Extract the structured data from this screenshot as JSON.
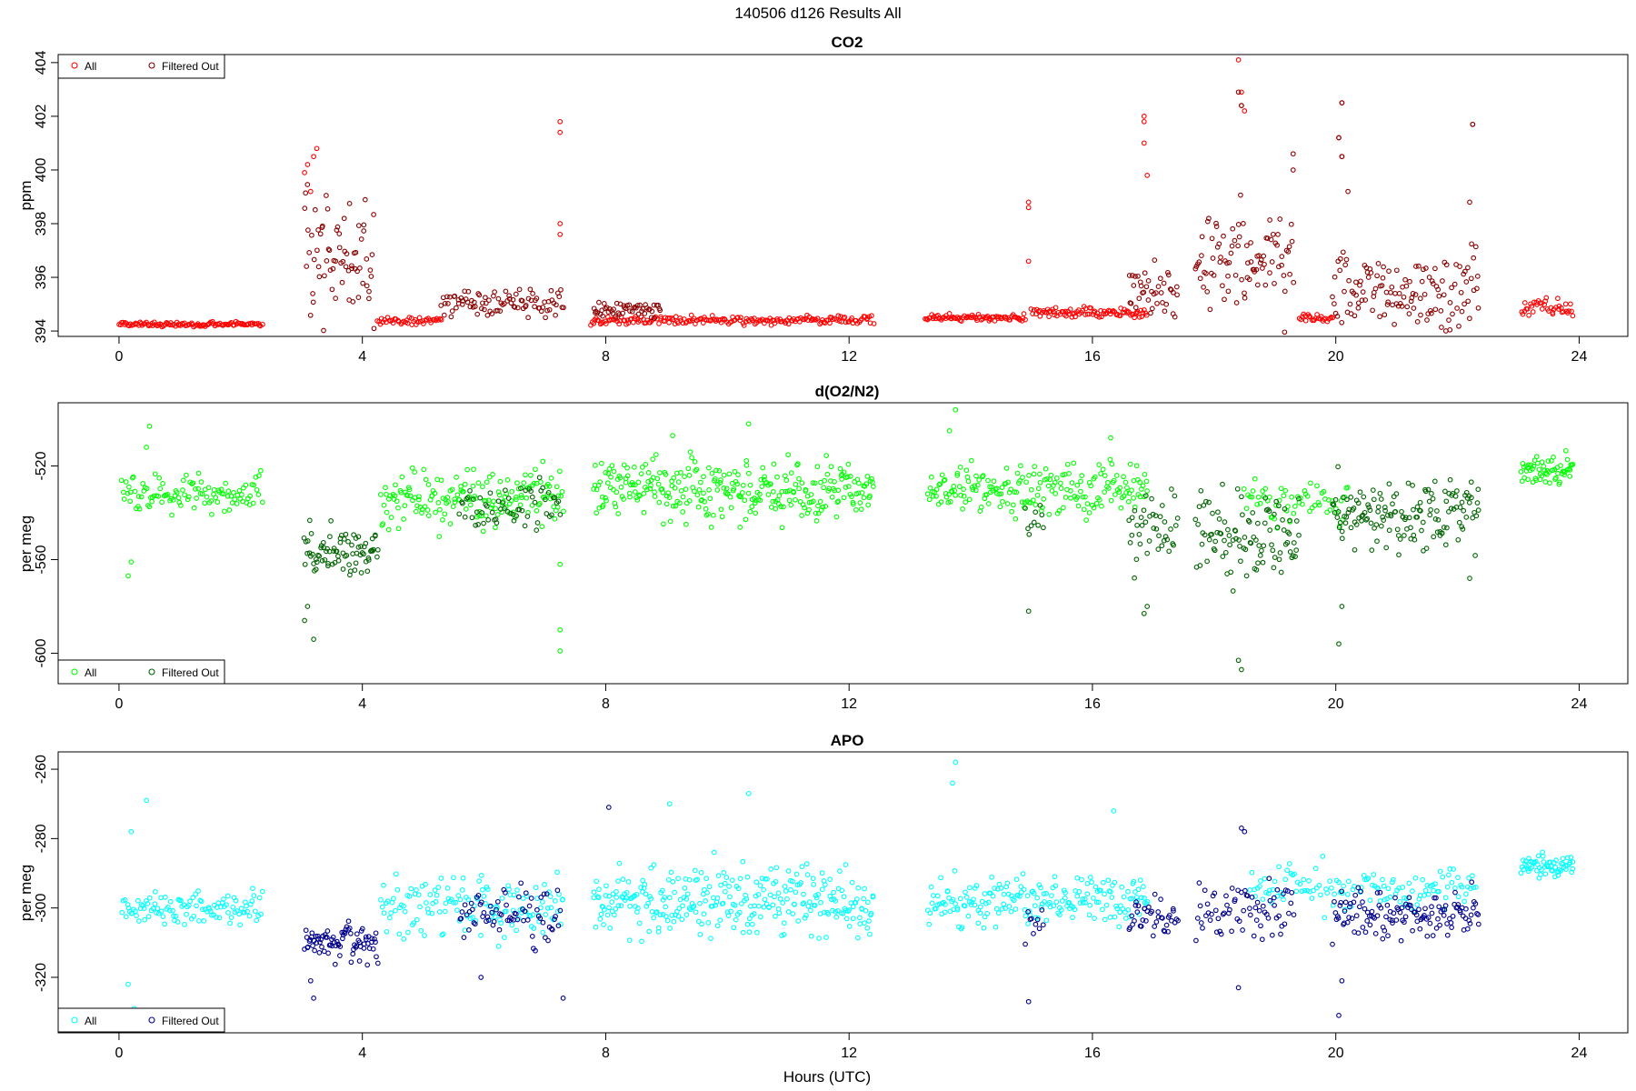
{
  "page_title": "140506   d126   Results All",
  "x_axis_label": "Hours (UTC)",
  "chart_data": [
    {
      "type": "scatter",
      "title": "CO2",
      "ylabel": "ppm",
      "xlabel": "",
      "xlim": [
        -1,
        24.8
      ],
      "ylim": [
        393.8,
        404.3
      ],
      "x_ticks": [
        0,
        4,
        8,
        12,
        16,
        20,
        24
      ],
      "y_ticks": [
        394,
        396,
        398,
        400,
        402,
        404
      ],
      "legend": {
        "position": "top-left",
        "entries": [
          "All",
          "Filtered Out"
        ]
      },
      "colors": {
        "all": "#ff0000",
        "filtered": "#8b0000"
      },
      "series": [
        {
          "name": "All",
          "role": "all",
          "segments": [
            {
              "x0": 0.0,
              "x1": 2.35,
              "n": 110,
              "base": 394.25,
              "spread": 0.08
            },
            {
              "x0": 4.25,
              "x1": 5.3,
              "n": 45,
              "base": 394.4,
              "spread": 0.15
            },
            {
              "x0": 7.75,
              "x1": 12.4,
              "n": 200,
              "base": 394.4,
              "spread": 0.15
            },
            {
              "x0": 13.25,
              "x1": 14.9,
              "n": 80,
              "base": 394.5,
              "spread": 0.12
            },
            {
              "x0": 15.0,
              "x1": 16.9,
              "n": 90,
              "base": 394.7,
              "spread": 0.2
            },
            {
              "x0": 19.4,
              "x1": 19.95,
              "n": 25,
              "base": 394.5,
              "spread": 0.15
            },
            {
              "x0": 23.05,
              "x1": 23.9,
              "n": 40,
              "base": 394.9,
              "spread": 0.3
            }
          ],
          "points": [
            [
              3.05,
              399.9
            ],
            [
              3.1,
              400.2
            ],
            [
              3.2,
              400.5
            ],
            [
              3.25,
              400.8
            ],
            [
              3.15,
              399.2
            ],
            [
              7.25,
              401.8
            ],
            [
              7.25,
              401.4
            ],
            [
              7.25,
              398.0
            ],
            [
              7.25,
              397.6
            ],
            [
              14.95,
              398.8
            ],
            [
              14.95,
              398.6
            ],
            [
              14.95,
              396.6
            ],
            [
              16.85,
              402.0
            ],
            [
              16.85,
              401.8
            ],
            [
              16.85,
              401.0
            ],
            [
              16.9,
              399.8
            ],
            [
              18.4,
              404.1
            ],
            [
              18.45,
              402.9
            ],
            [
              18.45,
              402.4
            ],
            [
              18.5,
              402.2
            ],
            [
              20.1,
              402.5
            ],
            [
              20.05,
              401.2
            ],
            [
              20.1,
              400.5
            ],
            [
              22.25,
              401.7
            ]
          ]
        },
        {
          "name": "Filtered Out",
          "role": "filtered",
          "segments": [
            {
              "x0": 3.05,
              "x1": 4.2,
              "n": 70,
              "base": 397.0,
              "spread": 2.2
            },
            {
              "x0": 5.3,
              "x1": 7.3,
              "n": 90,
              "base": 395.0,
              "spread": 0.55
            },
            {
              "x0": 7.8,
              "x1": 8.9,
              "n": 50,
              "base": 394.8,
              "spread": 0.3
            },
            {
              "x0": 16.6,
              "x1": 17.4,
              "n": 40,
              "base": 395.5,
              "spread": 1.0
            },
            {
              "x0": 17.7,
              "x1": 19.3,
              "n": 90,
              "base": 396.6,
              "spread": 1.7
            },
            {
              "x0": 19.95,
              "x1": 22.35,
              "n": 130,
              "base": 395.6,
              "spread": 1.4
            }
          ],
          "points": [
            [
              18.4,
              402.9
            ],
            [
              18.45,
              402.4
            ],
            [
              19.3,
              400.6
            ],
            [
              19.3,
              400.0
            ],
            [
              20.1,
              402.5
            ],
            [
              20.05,
              401.2
            ],
            [
              20.1,
              400.5
            ],
            [
              22.25,
              401.7
            ],
            [
              20.2,
              399.2
            ],
            [
              22.2,
              398.8
            ]
          ]
        }
      ]
    },
    {
      "type": "scatter",
      "title": "d(O2/N2)",
      "ylabel": "per meg",
      "xlabel": "",
      "xlim": [
        -1,
        24.8
      ],
      "ylim": [
        -613,
        -493
      ],
      "x_ticks": [
        0,
        4,
        8,
        12,
        16,
        20,
        24
      ],
      "y_ticks": [
        -600,
        -560,
        -520
      ],
      "legend": {
        "position": "bottom-left",
        "entries": [
          "All",
          "Filtered Out"
        ]
      },
      "colors": {
        "all": "#00ff00",
        "filtered": "#006400"
      },
      "series": [
        {
          "name": "All",
          "role": "all",
          "segments": [
            {
              "x0": 0.05,
              "x1": 2.35,
              "n": 110,
              "base": -532,
              "spread": 8
            },
            {
              "x0": 4.3,
              "x1": 7.3,
              "n": 170,
              "base": -533,
              "spread": 12
            },
            {
              "x0": 7.8,
              "x1": 12.4,
              "n": 300,
              "base": -530,
              "spread": 13
            },
            {
              "x0": 13.3,
              "x1": 16.9,
              "n": 200,
              "base": -530,
              "spread": 10
            },
            {
              "x0": 18.5,
              "x1": 20.2,
              "n": 60,
              "base": -535,
              "spread": 10
            },
            {
              "x0": 23.05,
              "x1": 23.9,
              "n": 60,
              "base": -522,
              "spread": 6
            }
          ],
          "points": [
            [
              0.45,
              -512
            ],
            [
              0.5,
              -503
            ],
            [
              0.2,
              -561
            ],
            [
              0.15,
              -567
            ],
            [
              13.75,
              -496
            ],
            [
              13.65,
              -505
            ],
            [
              10.35,
              -502
            ],
            [
              9.1,
              -507
            ],
            [
              16.3,
              -508
            ],
            [
              7.25,
              -590
            ],
            [
              7.25,
              -599
            ],
            [
              7.25,
              -562
            ]
          ]
        },
        {
          "name": "Filtered Out",
          "role": "filtered",
          "segments": [
            {
              "x0": 3.05,
              "x1": 4.25,
              "n": 80,
              "base": -557,
              "spread": 10
            },
            {
              "x0": 5.6,
              "x1": 7.25,
              "n": 60,
              "base": -538,
              "spread": 10
            },
            {
              "x0": 14.9,
              "x1": 15.2,
              "n": 10,
              "base": -545,
              "spread": 12
            },
            {
              "x0": 16.6,
              "x1": 17.4,
              "n": 40,
              "base": -545,
              "spread": 15
            },
            {
              "x0": 17.7,
              "x1": 19.4,
              "n": 100,
              "base": -550,
              "spread": 18
            },
            {
              "x0": 19.95,
              "x1": 22.35,
              "n": 150,
              "base": -540,
              "spread": 13
            }
          ],
          "points": [
            [
              3.2,
              -594
            ],
            [
              3.1,
              -580
            ],
            [
              3.05,
              -586
            ],
            [
              14.95,
              -582
            ],
            [
              16.9,
              -580
            ],
            [
              16.85,
              -583
            ],
            [
              18.4,
              -603
            ],
            [
              18.45,
              -607
            ],
            [
              20.05,
              -596
            ],
            [
              20.1,
              -580
            ],
            [
              22.2,
              -568
            ]
          ]
        }
      ]
    },
    {
      "type": "scatter",
      "title": "APO",
      "ylabel": "per meg",
      "xlabel": "Hours (UTC)",
      "xlim": [
        -1,
        24.8
      ],
      "ylim": [
        -336,
        -255
      ],
      "x_ticks": [
        0,
        4,
        8,
        12,
        16,
        20,
        24
      ],
      "y_ticks": [
        -320,
        -300,
        -280,
        -260
      ],
      "legend": {
        "position": "bottom-left",
        "entries": [
          "All",
          "Filtered Out"
        ]
      },
      "colors": {
        "all": "#00ffff",
        "filtered": "#00008b"
      },
      "series": [
        {
          "name": "All",
          "role": "all",
          "segments": [
            {
              "x0": 0.05,
              "x1": 2.35,
              "n": 110,
              "base": -300,
              "spread": 5
            },
            {
              "x0": 4.3,
              "x1": 7.3,
              "n": 140,
              "base": -300,
              "spread": 8
            },
            {
              "x0": 7.8,
              "x1": 12.4,
              "n": 300,
              "base": -298,
              "spread": 9
            },
            {
              "x0": 13.3,
              "x1": 16.9,
              "n": 200,
              "base": -298,
              "spread": 7
            },
            {
              "x0": 18.6,
              "x1": 20.3,
              "n": 60,
              "base": -294,
              "spread": 6
            },
            {
              "x0": 20.4,
              "x1": 22.3,
              "n": 70,
              "base": -294,
              "spread": 5
            },
            {
              "x0": 23.05,
              "x1": 23.9,
              "n": 60,
              "base": -288,
              "spread": 3
            }
          ],
          "points": [
            [
              0.45,
              -269
            ],
            [
              0.2,
              -278
            ],
            [
              0.25,
              -329
            ],
            [
              0.15,
              -322
            ],
            [
              13.75,
              -258
            ],
            [
              13.7,
              -264
            ],
            [
              9.05,
              -270
            ],
            [
              10.35,
              -267
            ],
            [
              16.35,
              -272
            ]
          ]
        },
        {
          "name": "Filtered Out",
          "role": "filtered",
          "segments": [
            {
              "x0": 3.05,
              "x1": 4.25,
              "n": 80,
              "base": -310,
              "spread": 5
            },
            {
              "x0": 5.6,
              "x1": 7.25,
              "n": 70,
              "base": -302,
              "spread": 8
            },
            {
              "x0": 14.9,
              "x1": 15.2,
              "n": 10,
              "base": -305,
              "spread": 8
            },
            {
              "x0": 16.6,
              "x1": 17.4,
              "n": 40,
              "base": -303,
              "spread": 5
            },
            {
              "x0": 17.7,
              "x1": 19.3,
              "n": 70,
              "base": -300,
              "spread": 9
            },
            {
              "x0": 19.95,
              "x1": 22.35,
              "n": 130,
              "base": -302,
              "spread": 6
            }
          ],
          "points": [
            [
              8.05,
              -271
            ],
            [
              3.2,
              -326
            ],
            [
              3.15,
              -321
            ],
            [
              14.95,
              -327
            ],
            [
              18.45,
              -277
            ],
            [
              18.5,
              -278
            ],
            [
              18.4,
              -323
            ],
            [
              20.05,
              -331
            ],
            [
              20.1,
              -321
            ],
            [
              7.3,
              -326
            ],
            [
              5.95,
              -320
            ]
          ]
        }
      ]
    }
  ]
}
